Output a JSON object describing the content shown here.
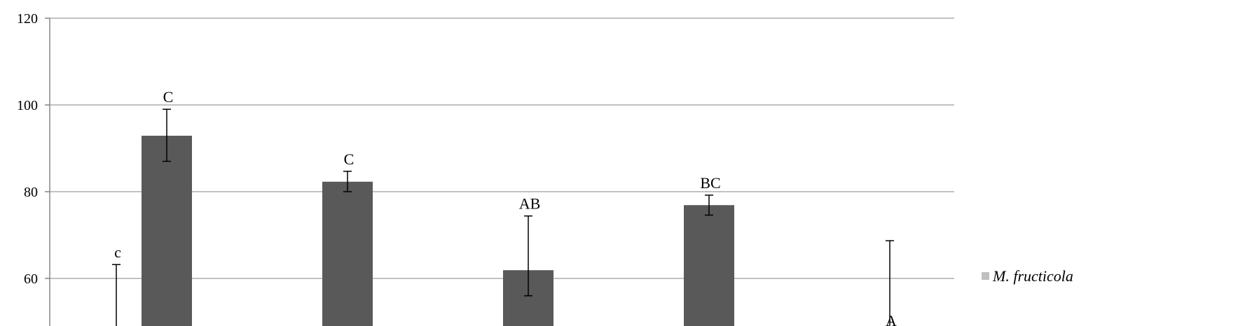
{
  "chart_data": {
    "type": "bar",
    "ylim": [
      60,
      120
    ],
    "yticks": [
      60,
      80,
      100,
      120
    ],
    "grid": true,
    "legend_position": "right",
    "bar_color": "#595959",
    "legend_swatch_color": "#bfbfbf",
    "series": [
      {
        "name": "M. fructicola",
        "color": "#bfbfbf",
        "values": [
          null,
          null,
          null,
          null,
          null,
          null
        ],
        "error_high": [
          63.2,
          null,
          null,
          null,
          null,
          68.7
        ],
        "labels": [
          "c",
          "",
          "",
          "",
          "",
          ""
        ]
      },
      {
        "name": "",
        "color": "#595959",
        "values": [
          null,
          92.9,
          82.3,
          61.9,
          76.9,
          null
        ],
        "error_low": [
          null,
          87.0,
          80.0,
          56.0,
          74.6,
          null
        ],
        "error_high": [
          null,
          99.0,
          84.7,
          74.4,
          79.2,
          null
        ],
        "labels": [
          "",
          "C",
          "C",
          "AB",
          "BC",
          "A"
        ]
      }
    ]
  }
}
